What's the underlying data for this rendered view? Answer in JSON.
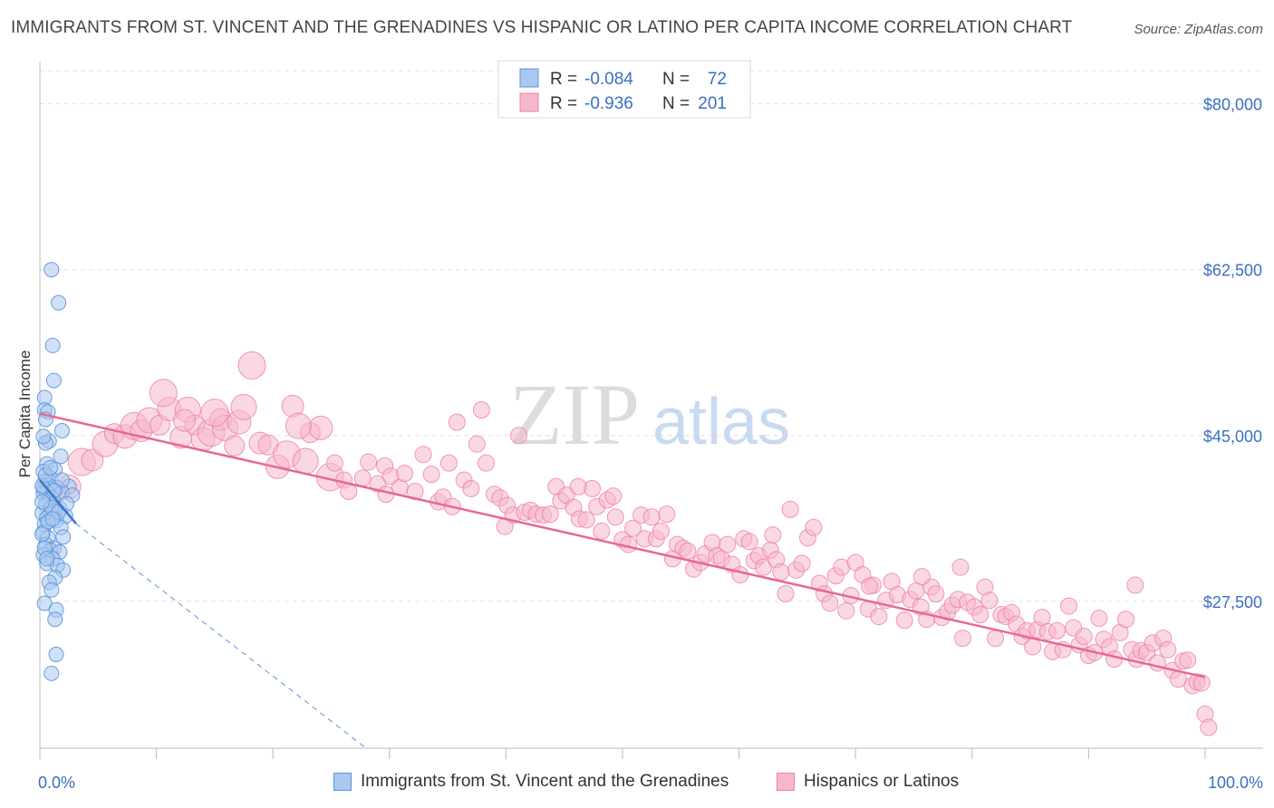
{
  "title": "IMMIGRANTS FROM ST. VINCENT AND THE GRENADINES VS HISPANIC OR LATINO PER CAPITA INCOME CORRELATION CHART",
  "source": "Source: ZipAtlas.com",
  "watermark": {
    "zip": "ZIP",
    "atlas": "atlas"
  },
  "colors": {
    "blue_fill": "#a9c8f0",
    "blue_stroke": "#5b93d9",
    "blue_line": "#3a76c8",
    "pink_fill": "#f6b8cb",
    "pink_stroke": "#ee7fa1",
    "pink_line": "#e8688f",
    "tick_label": "#3a6fc4",
    "grid": "#e0e0e0"
  },
  "legend": {
    "rows": [
      {
        "r_label": "R =",
        "r_value": "-0.084",
        "n_label": "N =",
        "n_value": "72"
      },
      {
        "r_label": "R =",
        "r_value": "-0.936",
        "n_label": "N =",
        "n_value": "201"
      }
    ]
  },
  "bottom_legend": [
    "Immigrants from St. Vincent and the Grenadines",
    "Hispanics or Latinos"
  ],
  "chart_data": {
    "type": "scatter",
    "title": "IMMIGRANTS FROM ST. VINCENT AND THE GRENADINES VS HISPANIC OR LATINO PER CAPITA INCOME CORRELATION CHART",
    "xlabel": "",
    "ylabel": "Per Capita Income",
    "xlim": [
      0,
      100
    ],
    "ylim": [
      12000,
      83500
    ],
    "x_tick_labels": [
      "0.0%",
      "100.0%"
    ],
    "y_ticks": [
      27500,
      45000,
      62500,
      80000
    ],
    "y_tick_labels": [
      "$27,500",
      "$45,000",
      "$62,500",
      "$80,000"
    ],
    "grid": true,
    "series": [
      {
        "name": "Immigrants from St. Vincent and the Grenadines",
        "r": -0.084,
        "n": 72,
        "trend": {
          "x": [
            0.0,
            3.1
          ],
          "y": [
            40300,
            35700
          ]
        },
        "trend_extension": {
          "x": [
            3.1,
            28.0
          ],
          "y": [
            35700,
            12000
          ]
        },
        "points": [
          [
            1.0,
            62500
          ],
          [
            1.6,
            59000
          ],
          [
            1.1,
            54500
          ],
          [
            1.2,
            50800
          ],
          [
            0.4,
            49000
          ],
          [
            0.4,
            47700
          ],
          [
            0.7,
            47500
          ],
          [
            0.5,
            46700
          ],
          [
            1.9,
            45500
          ],
          [
            0.8,
            44400
          ],
          [
            0.5,
            44200
          ],
          [
            0.6,
            42000
          ],
          [
            1.3,
            41400
          ],
          [
            0.3,
            41200
          ],
          [
            0.9,
            40500
          ],
          [
            0.4,
            40100
          ],
          [
            0.7,
            39800
          ],
          [
            1.5,
            39500
          ],
          [
            0.3,
            39400
          ],
          [
            0.6,
            39000
          ],
          [
            2.5,
            39600
          ],
          [
            1.9,
            39000
          ],
          [
            0.3,
            38900
          ],
          [
            2.8,
            38700
          ],
          [
            1.1,
            38400
          ],
          [
            0.8,
            38200
          ],
          [
            0.5,
            37700
          ],
          [
            1.7,
            37300
          ],
          [
            1.3,
            37000
          ],
          [
            0.2,
            36800
          ],
          [
            0.9,
            36700
          ],
          [
            2.2,
            36500
          ],
          [
            0.6,
            36300
          ],
          [
            1.4,
            36000
          ],
          [
            0.4,
            35600
          ],
          [
            1.8,
            35300
          ],
          [
            0.3,
            34800
          ],
          [
            2.0,
            34300
          ],
          [
            0.7,
            34200
          ],
          [
            0.5,
            33500
          ],
          [
            1.2,
            33100
          ],
          [
            0.9,
            32900
          ],
          [
            1.7,
            32700
          ],
          [
            0.3,
            32400
          ],
          [
            1.1,
            32000
          ],
          [
            0.6,
            31500
          ],
          [
            1.5,
            31300
          ],
          [
            2.0,
            30800
          ],
          [
            1.3,
            30000
          ],
          [
            0.8,
            29500
          ],
          [
            1.0,
            28700
          ],
          [
            0.4,
            27300
          ],
          [
            1.4,
            26600
          ],
          [
            1.3,
            25600
          ],
          [
            1.4,
            21900
          ],
          [
            1.0,
            19900
          ],
          [
            0.2,
            39700
          ],
          [
            0.5,
            40800
          ],
          [
            1.0,
            37400
          ],
          [
            1.6,
            36900
          ],
          [
            0.2,
            38000
          ],
          [
            0.7,
            35900
          ],
          [
            1.9,
            40300
          ],
          [
            0.4,
            33100
          ],
          [
            0.2,
            34600
          ],
          [
            1.2,
            39200
          ],
          [
            2.3,
            37800
          ],
          [
            0.9,
            41600
          ],
          [
            0.3,
            44900
          ],
          [
            1.8,
            42800
          ],
          [
            0.6,
            32000
          ],
          [
            1.1,
            36200
          ]
        ]
      },
      {
        "name": "Hispanics or Latinos",
        "r": -0.936,
        "n": 201,
        "trend": {
          "x": [
            0.0,
            100.0
          ],
          "y": [
            47300,
            19500
          ]
        },
        "points": [
          [
            1.3,
            38800
          ],
          [
            2.5,
            39600
          ],
          [
            3.6,
            42200
          ],
          [
            4.5,
            42400
          ],
          [
            5.6,
            44100
          ],
          [
            6.4,
            45200
          ],
          [
            7.3,
            44900
          ],
          [
            8.1,
            46000
          ],
          [
            8.7,
            45500
          ],
          [
            9.4,
            46600
          ],
          [
            10.3,
            46100
          ],
          [
            11.1,
            47800
          ],
          [
            10.6,
            49500
          ],
          [
            12.1,
            44800
          ],
          [
            12.7,
            47700
          ],
          [
            13.3,
            46100
          ],
          [
            14.0,
            44600
          ],
          [
            14.7,
            45300
          ],
          [
            15.5,
            46700
          ],
          [
            15.9,
            45800
          ],
          [
            16.7,
            43900
          ],
          [
            17.1,
            46400
          ],
          [
            18.2,
            52400
          ],
          [
            18.9,
            44200
          ],
          [
            17.5,
            48000
          ],
          [
            19.6,
            44000
          ],
          [
            20.4,
            41700
          ],
          [
            21.2,
            43000
          ],
          [
            21.7,
            48100
          ],
          [
            22.8,
            42300
          ],
          [
            23.2,
            45300
          ],
          [
            24.1,
            45800
          ],
          [
            24.9,
            40600
          ],
          [
            25.3,
            42100
          ],
          [
            26.1,
            40300
          ],
          [
            26.5,
            39100
          ],
          [
            27.7,
            40500
          ],
          [
            28.2,
            42200
          ],
          [
            29.0,
            39900
          ],
          [
            29.6,
            41800
          ],
          [
            30.1,
            40700
          ],
          [
            30.9,
            39500
          ],
          [
            31.3,
            41000
          ],
          [
            32.2,
            39100
          ],
          [
            32.9,
            43000
          ],
          [
            33.6,
            40900
          ],
          [
            34.2,
            38000
          ],
          [
            34.6,
            38500
          ],
          [
            35.1,
            42100
          ],
          [
            35.8,
            46400
          ],
          [
            36.4,
            40300
          ],
          [
            37.0,
            39400
          ],
          [
            37.5,
            44100
          ],
          [
            37.9,
            47700
          ],
          [
            38.3,
            42100
          ],
          [
            39.0,
            38800
          ],
          [
            39.5,
            38400
          ],
          [
            40.1,
            37600
          ],
          [
            40.6,
            36600
          ],
          [
            41.1,
            45000
          ],
          [
            41.6,
            36900
          ],
          [
            42.1,
            37100
          ],
          [
            42.6,
            36700
          ],
          [
            43.2,
            36600
          ],
          [
            43.8,
            36700
          ],
          [
            44.3,
            39600
          ],
          [
            44.7,
            38100
          ],
          [
            45.2,
            38700
          ],
          [
            45.8,
            37400
          ],
          [
            46.3,
            36200
          ],
          [
            46.9,
            36100
          ],
          [
            47.4,
            39400
          ],
          [
            47.8,
            37500
          ],
          [
            48.2,
            34900
          ],
          [
            48.7,
            38200
          ],
          [
            49.4,
            36400
          ],
          [
            50.0,
            34000
          ],
          [
            50.5,
            33500
          ],
          [
            50.9,
            35200
          ],
          [
            51.6,
            36600
          ],
          [
            51.9,
            34100
          ],
          [
            52.5,
            36400
          ],
          [
            52.9,
            34100
          ],
          [
            53.3,
            34900
          ],
          [
            53.8,
            36700
          ],
          [
            54.3,
            32000
          ],
          [
            54.7,
            33500
          ],
          [
            55.2,
            33100
          ],
          [
            55.6,
            32800
          ],
          [
            56.1,
            30900
          ],
          [
            56.7,
            31600
          ],
          [
            57.1,
            32500
          ],
          [
            57.7,
            33700
          ],
          [
            58.1,
            32300
          ],
          [
            58.5,
            32000
          ],
          [
            59.0,
            33500
          ],
          [
            59.4,
            31400
          ],
          [
            60.1,
            30300
          ],
          [
            60.4,
            34100
          ],
          [
            60.9,
            33800
          ],
          [
            61.3,
            31800
          ],
          [
            61.7,
            32300
          ],
          [
            62.1,
            31100
          ],
          [
            62.7,
            32900
          ],
          [
            63.2,
            31900
          ],
          [
            63.6,
            30600
          ],
          [
            64.0,
            28300
          ],
          [
            64.4,
            37200
          ],
          [
            64.9,
            30800
          ],
          [
            65.4,
            31500
          ],
          [
            65.9,
            34200
          ],
          [
            66.4,
            35300
          ],
          [
            66.9,
            29400
          ],
          [
            67.3,
            28300
          ],
          [
            67.8,
            27300
          ],
          [
            68.3,
            30200
          ],
          [
            68.8,
            31100
          ],
          [
            69.2,
            26500
          ],
          [
            69.6,
            28100
          ],
          [
            70.0,
            31600
          ],
          [
            70.6,
            30300
          ],
          [
            71.1,
            26700
          ],
          [
            71.5,
            29200
          ],
          [
            72.0,
            25900
          ],
          [
            72.6,
            27600
          ],
          [
            73.1,
            29600
          ],
          [
            73.6,
            28200
          ],
          [
            74.2,
            25500
          ],
          [
            74.7,
            27700
          ],
          [
            75.2,
            28600
          ],
          [
            75.6,
            26900
          ],
          [
            76.1,
            25600
          ],
          [
            76.5,
            29000
          ],
          [
            76.9,
            28300
          ],
          [
            77.4,
            25800
          ],
          [
            77.9,
            26400
          ],
          [
            78.3,
            27100
          ],
          [
            78.8,
            27700
          ],
          [
            79.2,
            23600
          ],
          [
            79.6,
            27400
          ],
          [
            80.2,
            26900
          ],
          [
            80.7,
            26100
          ],
          [
            81.1,
            29000
          ],
          [
            81.5,
            27600
          ],
          [
            82.0,
            23600
          ],
          [
            82.5,
            26100
          ],
          [
            82.9,
            25900
          ],
          [
            83.4,
            26300
          ],
          [
            83.8,
            25100
          ],
          [
            84.3,
            23800
          ],
          [
            84.7,
            24400
          ],
          [
            85.2,
            22700
          ],
          [
            85.6,
            24500
          ],
          [
            86.0,
            25800
          ],
          [
            86.5,
            24300
          ],
          [
            86.9,
            22200
          ],
          [
            87.3,
            24400
          ],
          [
            87.8,
            22400
          ],
          [
            88.3,
            27000
          ],
          [
            88.7,
            24700
          ],
          [
            89.2,
            22900
          ],
          [
            89.6,
            23800
          ],
          [
            90.0,
            21800
          ],
          [
            90.5,
            22100
          ],
          [
            90.9,
            25700
          ],
          [
            91.3,
            23500
          ],
          [
            91.8,
            22700
          ],
          [
            92.2,
            21400
          ],
          [
            92.7,
            24200
          ],
          [
            93.2,
            25600
          ],
          [
            93.7,
            22400
          ],
          [
            94.1,
            21400
          ],
          [
            94.5,
            22300
          ],
          [
            95.0,
            22100
          ],
          [
            95.5,
            23100
          ],
          [
            95.9,
            21000
          ],
          [
            96.4,
            23600
          ],
          [
            96.8,
            22400
          ],
          [
            97.2,
            20200
          ],
          [
            97.7,
            19300
          ],
          [
            98.1,
            21200
          ],
          [
            98.5,
            21300
          ],
          [
            98.9,
            18600
          ],
          [
            99.3,
            19000
          ],
          [
            99.7,
            18900
          ],
          [
            100.0,
            15600
          ],
          [
            100.3,
            14200
          ],
          [
            94.0,
            29200
          ],
          [
            79.0,
            31100
          ],
          [
            75.7,
            30100
          ],
          [
            71.2,
            29100
          ],
          [
            62.9,
            34500
          ],
          [
            49.2,
            38600
          ],
          [
            46.2,
            39600
          ],
          [
            39.9,
            35400
          ],
          [
            35.4,
            37500
          ],
          [
            29.7,
            38800
          ],
          [
            15.0,
            47400
          ],
          [
            12.4,
            46600
          ],
          [
            22.2,
            46000
          ]
        ]
      }
    ]
  }
}
